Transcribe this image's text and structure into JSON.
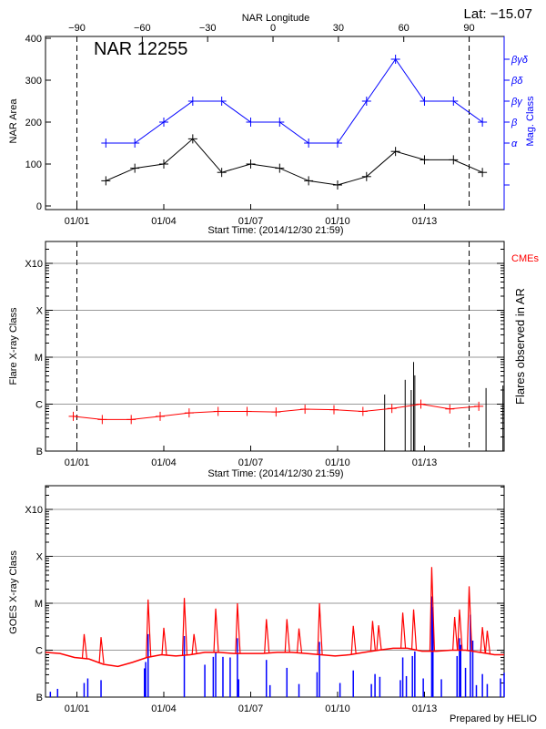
{
  "chart_data": [
    {
      "type": "line",
      "title": "NAR 12255",
      "top_axis_label": "NAR Longitude",
      "top_axis_ticks": [
        -90,
        -60,
        -30,
        0,
        30,
        60,
        90
      ],
      "corner_label": "Lat: −15.07",
      "xlabel": "Start Time: (2014/12/30 21:59)",
      "xlim": [
        "2014-12-30T21:59",
        "2015-01-15T18:00"
      ],
      "x_ticks": [
        {
          "t": "2015-01-01T00:00",
          "label": "01/01"
        },
        {
          "t": "2015-01-04T00:00",
          "label": "01/04"
        },
        {
          "t": "2015-01-07T00:00",
          "label": "01/07"
        },
        {
          "t": "2015-01-10T00:00",
          "label": "01/10"
        },
        {
          "t": "2015-01-13T00:00",
          "label": "01/13"
        }
      ],
      "limb_crossings": [
        "2015-01-01T00:00",
        "2015-01-14T13:00"
      ],
      "ylabel": "NAR Area",
      "ylim": [
        0,
        400
      ],
      "y_ticks": [
        "0",
        "100",
        "200",
        "300",
        "400"
      ],
      "y2label": "Mag. Class",
      "y2_classes": [
        "",
        "",
        "α",
        "β",
        "βγ",
        "βδ",
        "βγδ"
      ],
      "colors": {
        "area": "#000000",
        "mag": "#0000ff"
      },
      "x": [
        "2015-01-02T00:00",
        "2015-01-03T00:00",
        "2015-01-04T00:00",
        "2015-01-05T00:00",
        "2015-01-06T00:00",
        "2015-01-07T00:00",
        "2015-01-08T00:00",
        "2015-01-09T00:00",
        "2015-01-10T00:00",
        "2015-01-11T00:00",
        "2015-01-12T00:00",
        "2015-01-13T00:00",
        "2015-01-14T00:00",
        "2015-01-15T00:00"
      ],
      "series": [
        {
          "values": [
            60,
            90,
            100,
            160,
            80,
            100,
            90,
            60,
            50,
            70,
            130,
            110,
            110,
            80
          ]
        },
        {
          "values": [
            "α",
            "α",
            "β",
            "βγ",
            "βγ",
            "β",
            "β",
            "α",
            "α",
            "βγ",
            "βγδ",
            "βγ",
            "βγ",
            "β"
          ]
        }
      ]
    },
    {
      "type": "line",
      "xlabel": "Start Time: (2014/12/30 21:59)",
      "ylabel": "Flare X-ray Class",
      "y2label": "Flares observed in AR",
      "legend_label": "CMEs",
      "y_scale": "log",
      "ylim": [
        1e-07,
        0.0016
      ],
      "y_classes": [
        {
          "v": 1e-07,
          "label": "B"
        },
        {
          "v": 1e-06,
          "label": "C"
        },
        {
          "v": 1e-05,
          "label": "M"
        },
        {
          "v": 0.0001,
          "label": "X"
        },
        {
          "v": 0.001,
          "label": "X10"
        }
      ],
      "grid": true,
      "colors": {
        "background_level": "#ff0000",
        "flares": "#000000",
        "cmes": "#ff0000"
      },
      "background_level": [
        [
          "2014-12-31T21:00",
          5.5e-07
        ],
        [
          "2015-01-01T21:00",
          4.7e-07
        ],
        [
          "2015-01-02T21:00",
          4.7e-07
        ],
        [
          "2015-01-03T21:00",
          5.5e-07
        ],
        [
          "2015-01-04T21:00",
          6.5e-07
        ],
        [
          "2015-01-05T21:00",
          7e-07
        ],
        [
          "2015-01-06T21:00",
          7e-07
        ],
        [
          "2015-01-07T21:00",
          6.8e-07
        ],
        [
          "2015-01-08T21:00",
          7.8e-07
        ],
        [
          "2015-01-09T21:00",
          7.6e-07
        ],
        [
          "2015-01-10T21:00",
          7e-07
        ],
        [
          "2015-01-11T21:00",
          8.1e-07
        ],
        [
          "2015-01-12T21:00",
          1e-06
        ],
        [
          "2015-01-13T21:00",
          7.9e-07
        ],
        [
          "2015-01-14T21:00",
          9e-07
        ]
      ],
      "flares": [
        [
          "2015-01-11T15:00",
          1.6e-06
        ],
        [
          "2015-01-12T08:00",
          3.3e-06
        ],
        [
          "2015-01-12T13:00",
          2e-06
        ],
        [
          "2015-01-12T15:00",
          7.9e-06
        ],
        [
          "2015-01-12T16:00",
          4.1e-06
        ],
        [
          "2015-01-15T03:00",
          2.2e-06
        ],
        [
          "2015-01-15T17:00",
          2.5e-06
        ]
      ]
    },
    {
      "type": "line",
      "ylabel": "GOES X-ray Class",
      "y_scale": "log",
      "ylim": [
        1e-07,
        0.0016
      ],
      "y_classes": [
        {
          "v": 1e-07,
          "label": "B"
        },
        {
          "v": 1e-06,
          "label": "C"
        },
        {
          "v": 1e-05,
          "label": "M"
        },
        {
          "v": 0.0001,
          "label": "X"
        },
        {
          "v": 0.001,
          "label": "X10"
        }
      ],
      "grid": true,
      "colors": {
        "long": "#ff0000",
        "short": "#0000ff"
      },
      "long_baseline": [
        [
          "2014-12-30T22:00",
          9e-07
        ],
        [
          "2014-12-31T10:00",
          8.5e-07
        ],
        [
          "2014-12-31T22:00",
          7e-07
        ],
        [
          "2015-01-01T10:00",
          6.5e-07
        ],
        [
          "2015-01-01T22:00",
          5e-07
        ],
        [
          "2015-01-02T10:00",
          4.5e-07
        ],
        [
          "2015-01-02T22:00",
          5.5e-07
        ],
        [
          "2015-01-03T10:00",
          7e-07
        ],
        [
          "2015-01-03T22:00",
          8e-07
        ],
        [
          "2015-01-04T10:00",
          7.5e-07
        ],
        [
          "2015-01-04T22:00",
          8e-07
        ],
        [
          "2015-01-05T10:00",
          9e-07
        ],
        [
          "2015-01-05T22:00",
          9e-07
        ],
        [
          "2015-01-06T10:00",
          8.5e-07
        ],
        [
          "2015-01-06T22:00",
          8.5e-07
        ],
        [
          "2015-01-07T10:00",
          8.5e-07
        ],
        [
          "2015-01-07T22:00",
          9e-07
        ],
        [
          "2015-01-08T10:00",
          9e-07
        ],
        [
          "2015-01-08T22:00",
          8.5e-07
        ],
        [
          "2015-01-09T10:00",
          8e-07
        ],
        [
          "2015-01-09T22:00",
          7.5e-07
        ],
        [
          "2015-01-10T10:00",
          8e-07
        ],
        [
          "2015-01-10T22:00",
          9e-07
        ],
        [
          "2015-01-11T10:00",
          1e-06
        ],
        [
          "2015-01-11T22:00",
          1.1e-06
        ],
        [
          "2015-01-12T10:00",
          1.1e-06
        ],
        [
          "2015-01-12T22:00",
          9.5e-07
        ],
        [
          "2015-01-13T10:00",
          9.5e-07
        ],
        [
          "2015-01-13T22:00",
          1e-06
        ],
        [
          "2015-01-14T10:00",
          1e-06
        ],
        [
          "2015-01-14T22:00",
          9e-07
        ],
        [
          "2015-01-15T10:00",
          8e-07
        ],
        [
          "2015-01-15T18:00",
          8e-07
        ]
      ],
      "long_peaks": [
        [
          "2015-01-01T06:00",
          2.2e-06
        ],
        [
          "2015-01-01T20:00",
          1.9e-06
        ],
        [
          "2015-01-03T11:00",
          1.2e-05
        ],
        [
          "2015-01-04T00:00",
          3e-06
        ],
        [
          "2015-01-04T17:00",
          1.3e-05
        ],
        [
          "2015-01-05T01:00",
          2.2e-06
        ],
        [
          "2015-01-05T19:00",
          7.7e-06
        ],
        [
          "2015-01-06T13:00",
          1e-05
        ],
        [
          "2015-01-07T13:00",
          4.6e-06
        ],
        [
          "2015-01-08T06:00",
          4.6e-06
        ],
        [
          "2015-01-08T16:00",
          2.9e-06
        ],
        [
          "2015-01-09T09:00",
          1e-05
        ],
        [
          "2015-01-10T13:00",
          3.3e-06
        ],
        [
          "2015-01-11T05:00",
          4.2e-06
        ],
        [
          "2015-01-11T10:00",
          3.4e-06
        ],
        [
          "2015-01-12T06:00",
          6.3e-06
        ],
        [
          "2015-01-12T15:00",
          7.4e-06
        ],
        [
          "2015-01-13T06:00",
          5.9e-05
        ],
        [
          "2015-01-14T01:00",
          5.1e-06
        ],
        [
          "2015-01-14T05:00",
          7.4e-06
        ],
        [
          "2015-01-14T13:00",
          2.3e-05
        ],
        [
          "2015-01-15T00:00",
          3.1e-06
        ],
        [
          "2015-01-15T04:00",
          2.6e-06
        ]
      ],
      "short_spikes": [
        [
          "2014-12-31T02:00",
          1.3e-07
        ],
        [
          "2014-12-31T08:00",
          1.5e-07
        ],
        [
          "2015-01-01T06:00",
          2e-07
        ],
        [
          "2015-01-01T09:00",
          2.5e-07
        ],
        [
          "2015-01-01T20:00",
          2.3e-07
        ],
        [
          "2015-01-03T08:00",
          4.1e-07
        ],
        [
          "2015-01-03T09:00",
          5.6e-07
        ],
        [
          "2015-01-03T11:00",
          2.2e-06
        ],
        [
          "2015-01-04T17:00",
          2e-06
        ],
        [
          "2015-01-05T10:00",
          4.9e-07
        ],
        [
          "2015-01-05T17:00",
          7.2e-07
        ],
        [
          "2015-01-05T19:00",
          9e-07
        ],
        [
          "2015-01-06T01:00",
          7.2e-07
        ],
        [
          "2015-01-06T07:00",
          7e-07
        ],
        [
          "2015-01-06T13:00",
          1.8e-06
        ],
        [
          "2015-01-06T14:00",
          2.4e-07
        ],
        [
          "2015-01-07T13:00",
          6.2e-07
        ],
        [
          "2015-01-07T16:00",
          1.8e-07
        ],
        [
          "2015-01-08T06:00",
          4.2e-07
        ],
        [
          "2015-01-08T16:00",
          1.9e-07
        ],
        [
          "2015-01-09T07:00",
          3.4e-07
        ],
        [
          "2015-01-09T09:00",
          1.5e-06
        ],
        [
          "2015-01-10T02:00",
          2e-07
        ],
        [
          "2015-01-10T13:00",
          3.7e-07
        ],
        [
          "2015-01-11T04:00",
          1.9e-07
        ],
        [
          "2015-01-11T07:00",
          3.1e-07
        ],
        [
          "2015-01-11T11:00",
          2.7e-07
        ],
        [
          "2015-01-12T04:00",
          2.3e-07
        ],
        [
          "2015-01-12T06:00",
          7e-07
        ],
        [
          "2015-01-12T09:00",
          2.8e-07
        ],
        [
          "2015-01-12T14:00",
          7.5e-07
        ],
        [
          "2015-01-12T16:00",
          9.4e-07
        ],
        [
          "2015-01-12T23:00",
          2.5e-07
        ],
        [
          "2015-01-13T06:00",
          1.4e-05
        ],
        [
          "2015-01-13T07:00",
          8.3e-06
        ],
        [
          "2015-01-13T14:00",
          2.4e-07
        ],
        [
          "2015-01-14T03:00",
          7.5e-07
        ],
        [
          "2015-01-14T05:00",
          1.8e-06
        ],
        [
          "2015-01-14T06:00",
          1.3e-06
        ],
        [
          "2015-01-14T10:00",
          4.2e-07
        ],
        [
          "2015-01-14T14:00",
          5.7e-06
        ],
        [
          "2015-01-14T16:00",
          1.6e-06
        ],
        [
          "2015-01-14T19:00",
          1.8e-07
        ],
        [
          "2015-01-15T00:00",
          3.1e-07
        ],
        [
          "2015-01-15T04:00",
          1.9e-07
        ],
        [
          "2015-01-15T15:00",
          2.5e-07
        ],
        [
          "2015-01-15T18:00",
          3.3e-07
        ]
      ],
      "footer": "Prepared by HELIO"
    }
  ]
}
